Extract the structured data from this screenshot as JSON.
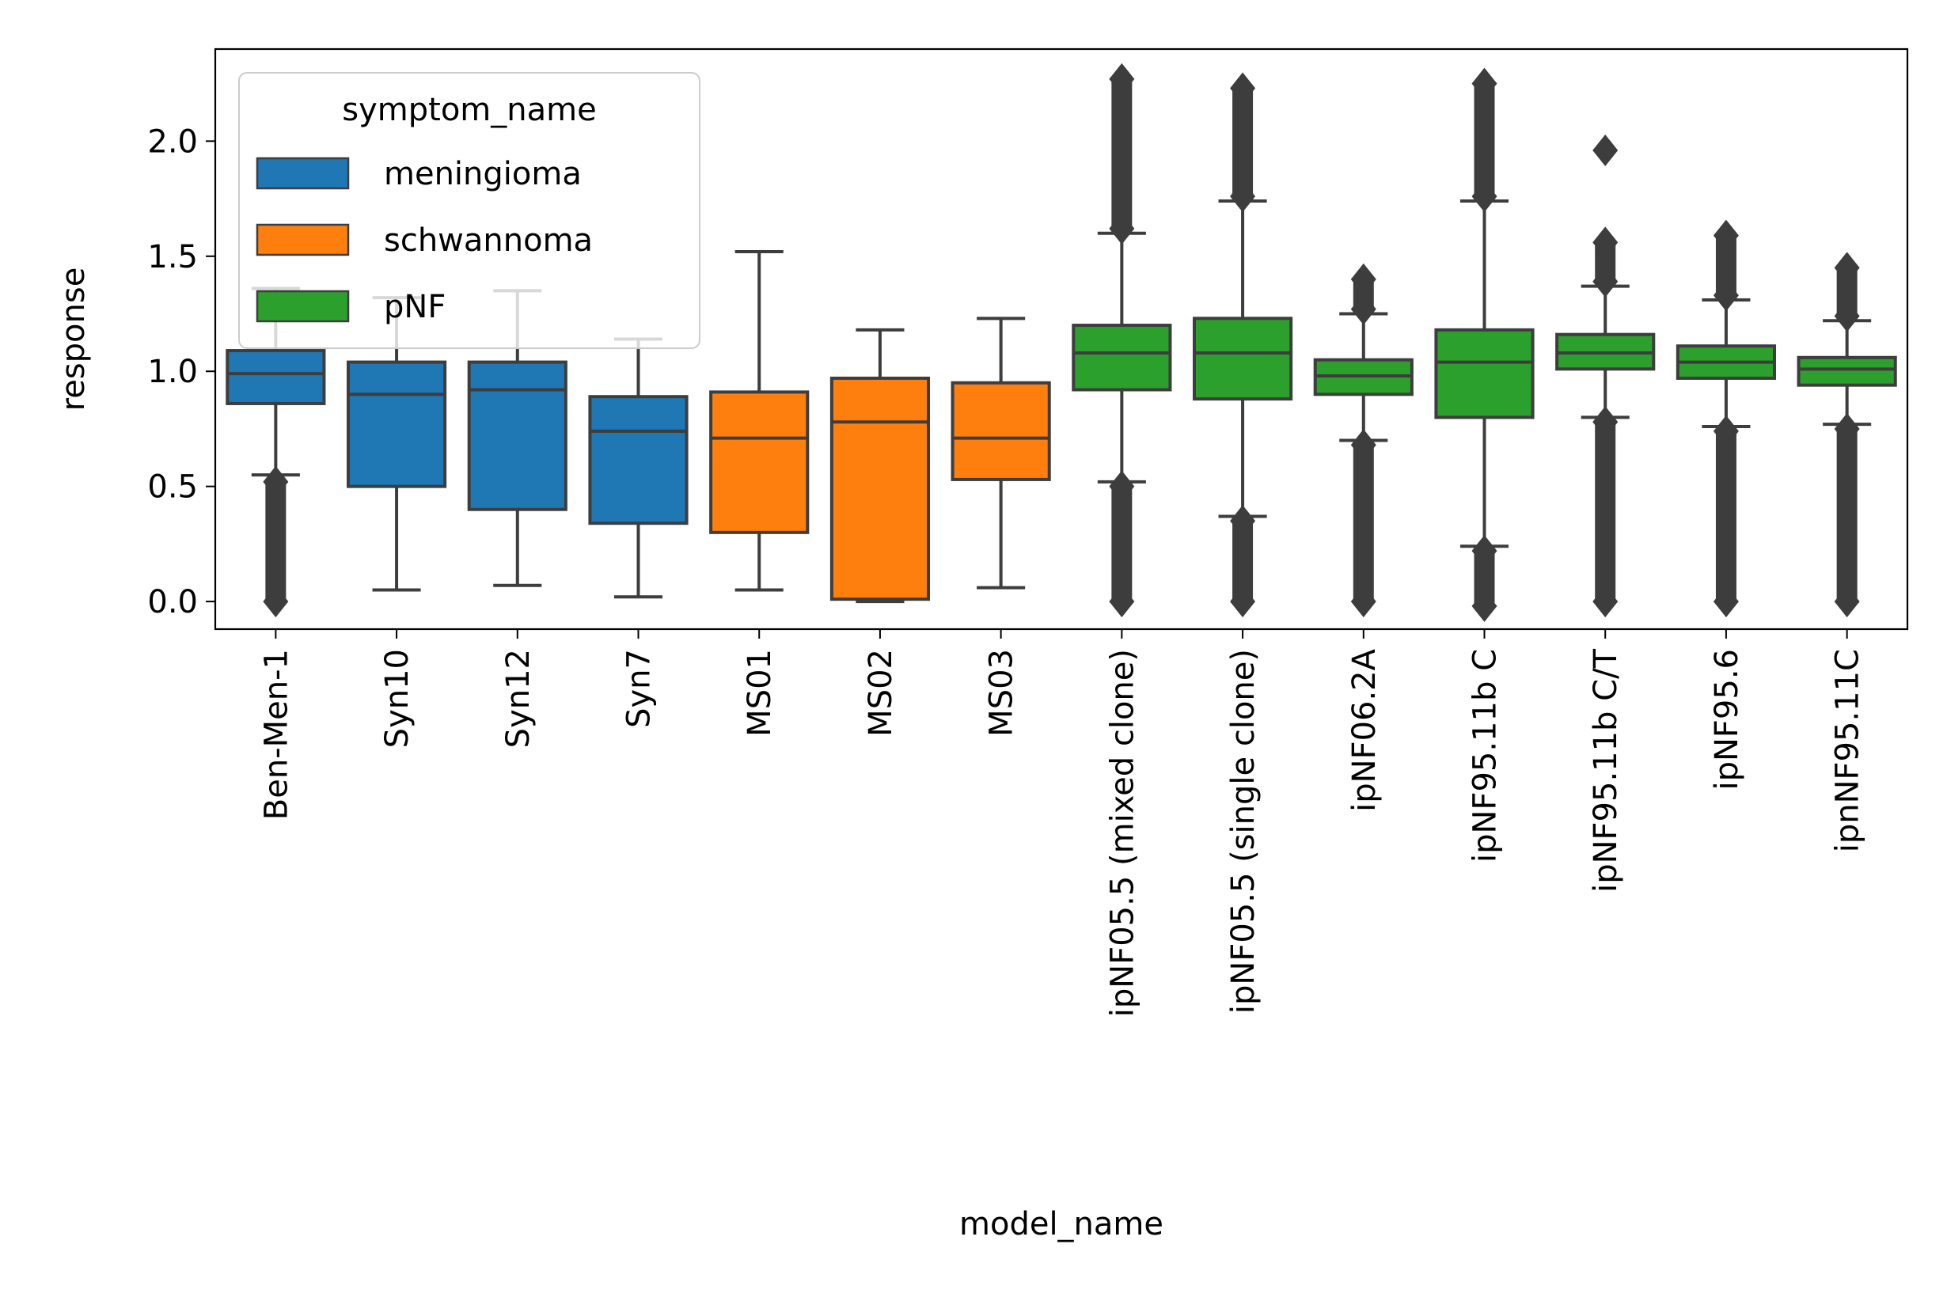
{
  "chart_data": {
    "type": "box",
    "title": "",
    "xlabel": "model_name",
    "ylabel": "response",
    "ylim": [
      -0.12,
      2.4
    ],
    "yticks": [
      {
        "value": 0.0,
        "label": "0.0"
      },
      {
        "value": 0.5,
        "label": "0.5"
      },
      {
        "value": 1.0,
        "label": "1.0"
      },
      {
        "value": 1.5,
        "label": "1.5"
      },
      {
        "value": 2.0,
        "label": "2.0"
      }
    ],
    "legend": {
      "title": "symptom_name",
      "placement": "upper-left",
      "entries": [
        {
          "label": "meningioma",
          "color": "#1f77b4"
        },
        {
          "label": "schwannoma",
          "color": "#ff7f0e"
        },
        {
          "label": "pNF",
          "color": "#2ca02c"
        }
      ]
    },
    "grid": false,
    "edge_color": "#3d3d3d",
    "categories": [
      "Ben-Men-1",
      "Syn10",
      "Syn12",
      "Syn7",
      "MS01",
      "MS02",
      "MS03",
      "ipNF05.5 (mixed clone)",
      "ipNF05.5 (single clone)",
      "ipNF06.2A",
      "ipNF95.11b C",
      "ipNF95.11b C/T",
      "ipNF95.6",
      "ipnNF95.11C"
    ],
    "boxes": [
      {
        "category": "Ben-Men-1",
        "group": "meningioma",
        "whisker_low": 0.55,
        "q1": 0.86,
        "median": 0.99,
        "q3": 1.09,
        "whisker_high": 1.36,
        "outliers_low": [
          0.0,
          0.52
        ],
        "outliers_high": []
      },
      {
        "category": "Syn10",
        "group": "meningioma",
        "whisker_low": 0.05,
        "q1": 0.5,
        "median": 0.9,
        "q3": 1.04,
        "whisker_high": 1.32,
        "outliers_low": [],
        "outliers_high": []
      },
      {
        "category": "Syn12",
        "group": "meningioma",
        "whisker_low": 0.07,
        "q1": 0.4,
        "median": 0.92,
        "q3": 1.04,
        "whisker_high": 1.35,
        "outliers_low": [],
        "outliers_high": []
      },
      {
        "category": "Syn7",
        "group": "meningioma",
        "whisker_low": 0.02,
        "q1": 0.34,
        "median": 0.74,
        "q3": 0.89,
        "whisker_high": 1.14,
        "outliers_low": [],
        "outliers_high": []
      },
      {
        "category": "MS01",
        "group": "schwannoma",
        "whisker_low": 0.05,
        "q1": 0.3,
        "median": 0.71,
        "q3": 0.91,
        "whisker_high": 1.52,
        "outliers_low": [],
        "outliers_high": []
      },
      {
        "category": "MS02",
        "group": "schwannoma",
        "whisker_low": 0.0,
        "q1": 0.01,
        "median": 0.78,
        "q3": 0.97,
        "whisker_high": 1.18,
        "outliers_low": [],
        "outliers_high": []
      },
      {
        "category": "MS03",
        "group": "schwannoma",
        "whisker_low": 0.06,
        "q1": 0.53,
        "median": 0.71,
        "q3": 0.95,
        "whisker_high": 1.23,
        "outliers_low": [],
        "outliers_high": []
      },
      {
        "category": "ipNF05.5 (mixed clone)",
        "group": "pNF",
        "whisker_low": 0.52,
        "q1": 0.92,
        "median": 1.08,
        "q3": 1.2,
        "whisker_high": 1.6,
        "outliers_low": [
          0.0,
          0.5
        ],
        "outliers_high": [
          1.62,
          2.27
        ]
      },
      {
        "category": "ipNF05.5 (single clone)",
        "group": "pNF",
        "whisker_low": 0.37,
        "q1": 0.88,
        "median": 1.08,
        "q3": 1.23,
        "whisker_high": 1.74,
        "outliers_low": [
          0.0,
          0.35
        ],
        "outliers_high": [
          1.76,
          2.23
        ]
      },
      {
        "category": "ipNF06.2A",
        "group": "pNF",
        "whisker_low": 0.7,
        "q1": 0.9,
        "median": 0.98,
        "q3": 1.05,
        "whisker_high": 1.25,
        "outliers_low": [
          0.0,
          0.68
        ],
        "outliers_high": [
          1.27,
          1.4
        ]
      },
      {
        "category": "ipNF95.11b C",
        "group": "pNF",
        "whisker_low": 0.24,
        "q1": 0.8,
        "median": 1.04,
        "q3": 1.18,
        "whisker_high": 1.74,
        "outliers_low": [
          -0.02,
          0.22
        ],
        "outliers_high": [
          1.76,
          2.25
        ]
      },
      {
        "category": "ipNF95.11b C/T",
        "group": "pNF",
        "whisker_low": 0.8,
        "q1": 1.01,
        "median": 1.08,
        "q3": 1.16,
        "whisker_high": 1.37,
        "outliers_low": [
          0.0,
          0.78
        ],
        "outliers_high": [
          1.39,
          1.56,
          1.96
        ]
      },
      {
        "category": "ipNF95.6",
        "group": "pNF",
        "whisker_low": 0.76,
        "q1": 0.97,
        "median": 1.04,
        "q3": 1.11,
        "whisker_high": 1.31,
        "outliers_low": [
          0.0,
          0.74
        ],
        "outliers_high": [
          1.33,
          1.59
        ]
      },
      {
        "category": "ipnNF95.11C",
        "group": "pNF",
        "whisker_low": 0.77,
        "q1": 0.94,
        "median": 1.01,
        "q3": 1.06,
        "whisker_high": 1.22,
        "outliers_low": [
          0.0,
          0.75
        ],
        "outliers_high": [
          1.24,
          1.45
        ]
      }
    ]
  }
}
